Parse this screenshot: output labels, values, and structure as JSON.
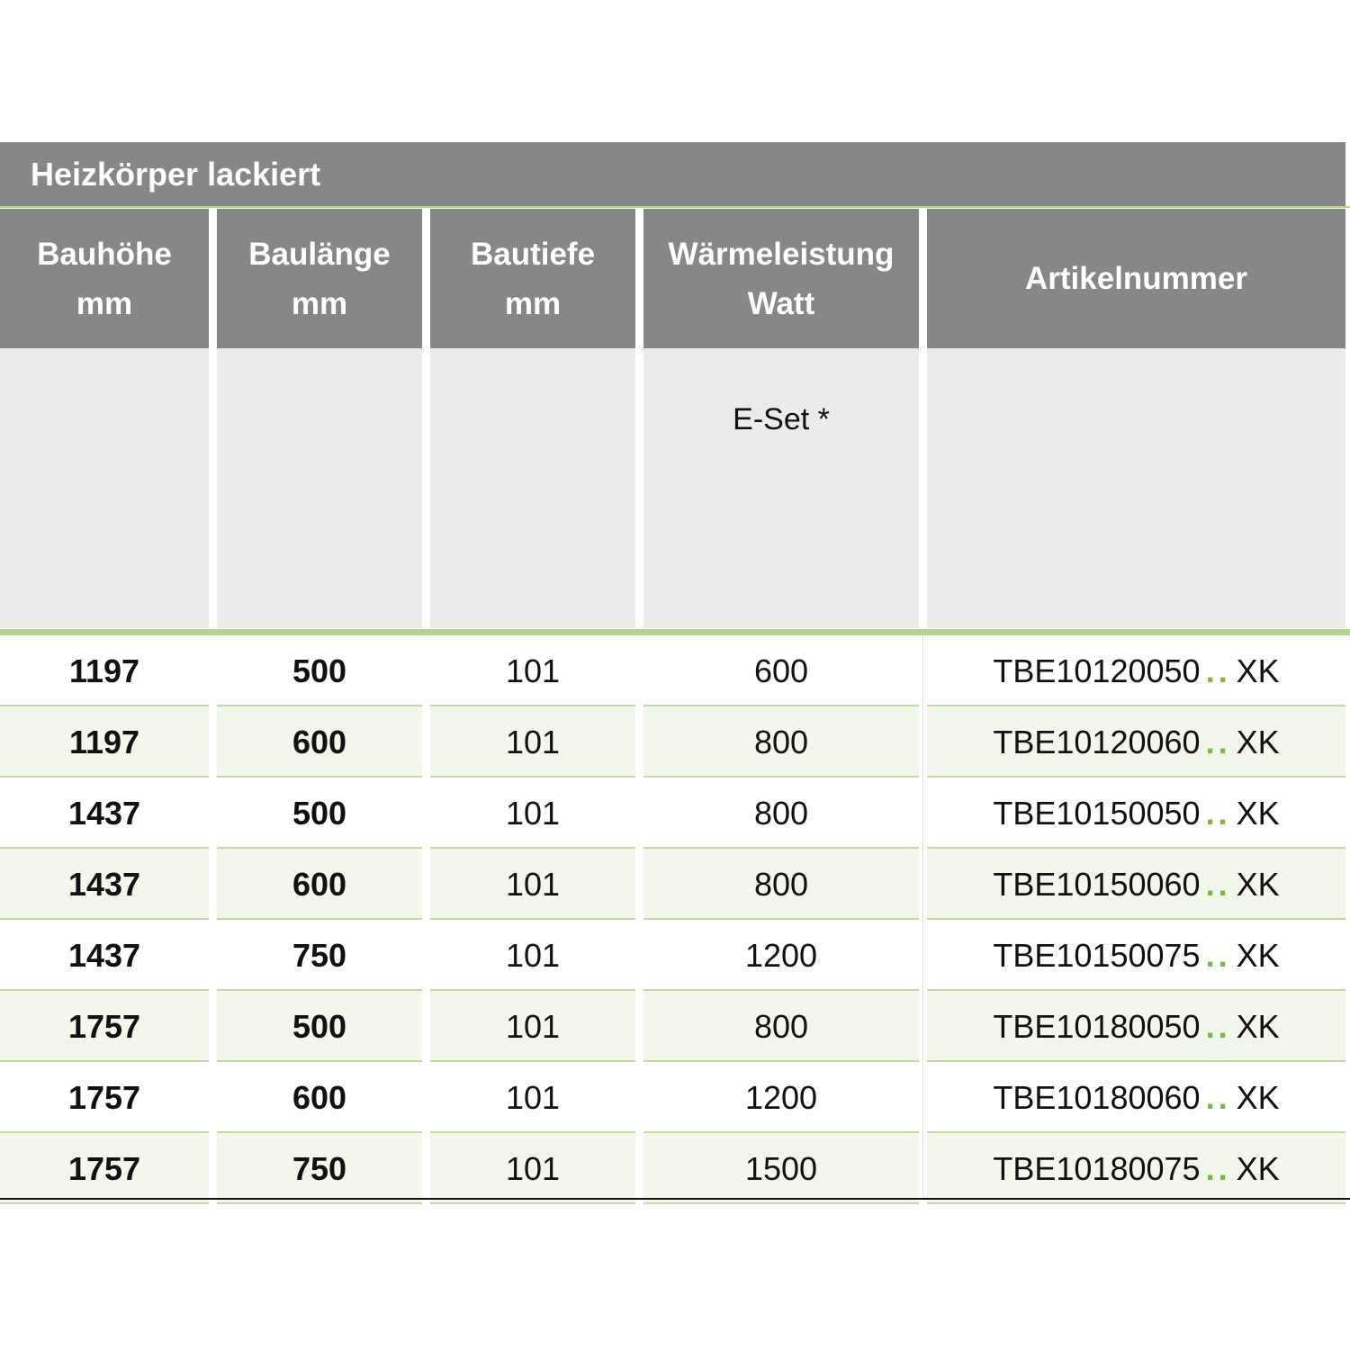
{
  "title": "Heizkörper lackiert",
  "columns": [
    {
      "line1": "Bauhöhe",
      "line2": "mm",
      "sub": ""
    },
    {
      "line1": "Baulänge",
      "line2": "mm",
      "sub": ""
    },
    {
      "line1": "Bautiefe",
      "line2": "mm",
      "sub": ""
    },
    {
      "line1": "Wärmeleistung",
      "line2": "Watt",
      "sub": "E-Set *"
    },
    {
      "line1": "Artikelnummer",
      "line2": "",
      "sub": ""
    }
  ],
  "rows": [
    {
      "hoehe": "1197",
      "laenge": "500",
      "tiefe": "101",
      "watt": "600",
      "art": "TBE10120050",
      "dots": "..",
      "suffix": "XK"
    },
    {
      "hoehe": "1197",
      "laenge": "600",
      "tiefe": "101",
      "watt": "800",
      "art": "TBE10120060",
      "dots": "..",
      "suffix": "XK"
    },
    {
      "hoehe": "1437",
      "laenge": "500",
      "tiefe": "101",
      "watt": "800",
      "art": "TBE10150050",
      "dots": "..",
      "suffix": "XK"
    },
    {
      "hoehe": "1437",
      "laenge": "600",
      "tiefe": "101",
      "watt": "800",
      "art": "TBE10150060",
      "dots": "..",
      "suffix": "XK"
    },
    {
      "hoehe": "1437",
      "laenge": "750",
      "tiefe": "101",
      "watt": "1200",
      "art": "TBE10150075",
      "dots": "..",
      "suffix": "XK"
    },
    {
      "hoehe": "1757",
      "laenge": "500",
      "tiefe": "101",
      "watt": "800",
      "art": "TBE10180050",
      "dots": "..",
      "suffix": "XK"
    },
    {
      "hoehe": "1757",
      "laenge": "600",
      "tiefe": "101",
      "watt": "1200",
      "art": "TBE10180060",
      "dots": "..",
      "suffix": "XK"
    },
    {
      "hoehe": "1757",
      "laenge": "750",
      "tiefe": "101",
      "watt": "1500",
      "art": "TBE10180075",
      "dots": "..",
      "suffix": "XK"
    }
  ],
  "colors": {
    "header_gray": "#878787",
    "sub_gray": "#ebebeb",
    "accent_green": "#b5d48a",
    "dots_green": "#7ab648",
    "alt_row": "#f2f6eb"
  }
}
